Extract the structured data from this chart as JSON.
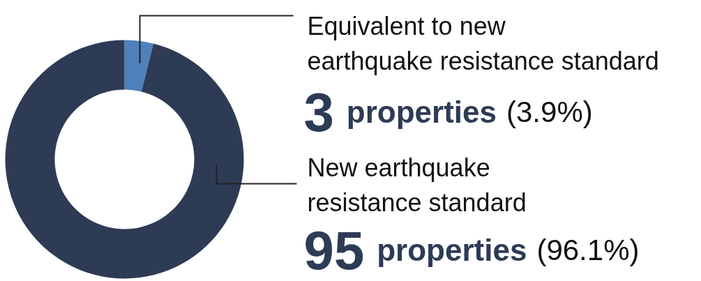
{
  "chart_data": {
    "type": "donut",
    "categories": [
      "Equivalent to new\nearthquake resistance standard",
      "New earthquake\nresistance standard"
    ],
    "values": [
      3.9,
      96.1
    ],
    "colors": [
      "#4f81bd",
      "#2e3b55"
    ],
    "value_labels": [
      "3 properties (3.9%)",
      "95 properties (96.1%)"
    ]
  }
}
